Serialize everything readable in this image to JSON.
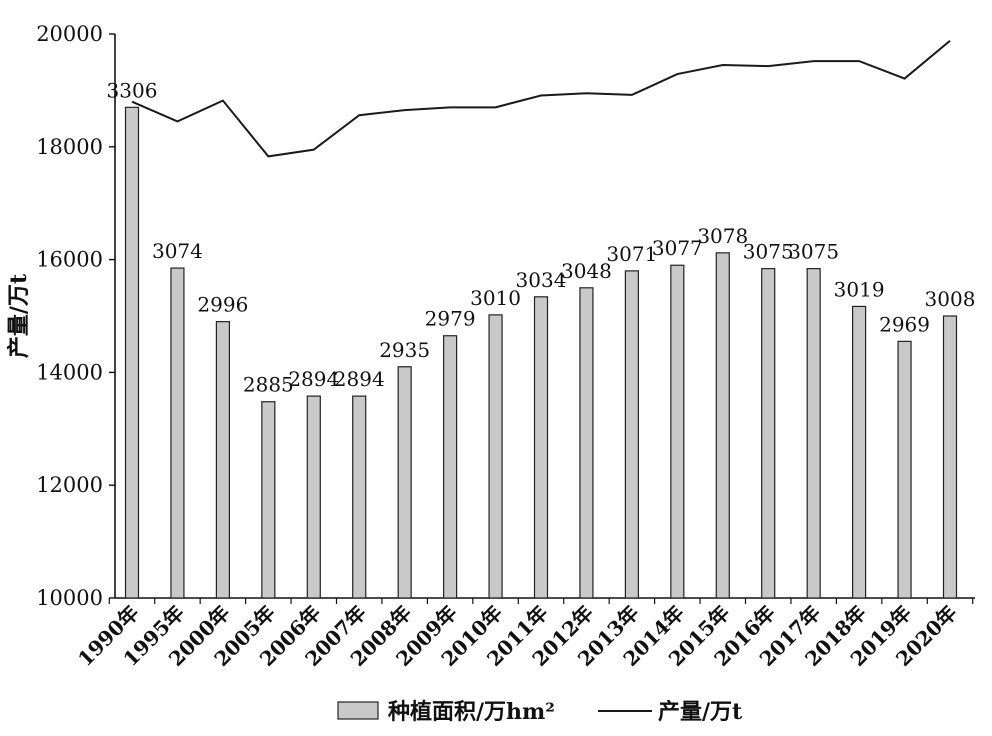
{
  "chart_data": {
    "type": "bar",
    "title": "",
    "xlabel": "",
    "ylabel": "产量/万t",
    "ylim": [
      10000,
      20000
    ],
    "yticks": [
      "10000",
      "12000",
      "14000",
      "16000",
      "18000",
      "20000"
    ],
    "categories": [
      "1990年",
      "1995年",
      "2000年",
      "2005年",
      "2006年",
      "2007年",
      "2008年",
      "2009年",
      "2010年",
      "2011年",
      "2012年",
      "2013年",
      "2014年",
      "2015年",
      "2016年",
      "2017年",
      "2018年",
      "2019年",
      "2020年"
    ],
    "series": [
      {
        "name": "种植面积/万hm²",
        "type": "bar",
        "color": "#c9c9c9",
        "labels": [
          "3306",
          "3074",
          "2996",
          "2885",
          "2894",
          "2894",
          "2935",
          "2979",
          "3010",
          "3034",
          "3048",
          "3071",
          "3077",
          "3078",
          "3075",
          "3075",
          "3019",
          "2969",
          "3008"
        ],
        "values": [
          18700,
          15850,
          14900,
          13480,
          13580,
          13580,
          14100,
          14650,
          15020,
          15340,
          15500,
          15800,
          15900,
          16120,
          15840,
          15840,
          15170,
          14550,
          15000
        ]
      },
      {
        "name": "产量/万t",
        "type": "line",
        "color": "#1a1a1a",
        "values": [
          18800,
          18450,
          18820,
          17830,
          17950,
          18560,
          18650,
          18700,
          18700,
          18910,
          18950,
          18920,
          19290,
          19450,
          19430,
          19520,
          19520,
          19210,
          19880
        ]
      }
    ],
    "grid": false,
    "legend": "bottom"
  }
}
